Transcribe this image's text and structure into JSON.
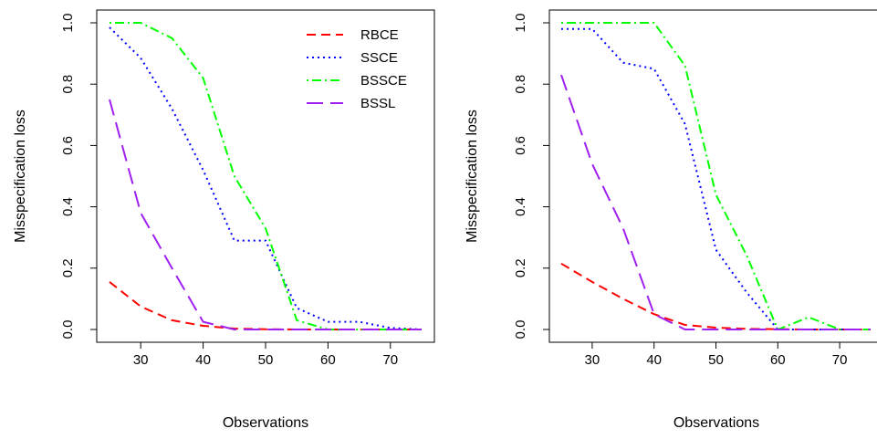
{
  "chart_data": [
    {
      "type": "line",
      "xlabel": "Observations",
      "ylabel": "Misspecification loss",
      "xlim": [
        25,
        75
      ],
      "ylim": [
        0,
        1
      ],
      "xticks": [
        "30",
        "40",
        "50",
        "60",
        "70"
      ],
      "yticks": [
        "0.0",
        "0.2",
        "0.4",
        "0.6",
        "0.8",
        "1.0"
      ],
      "legend": "top-right",
      "grid": false,
      "x": [
        25,
        30,
        35,
        40,
        45,
        50,
        55,
        60,
        65,
        70,
        75
      ],
      "series": [
        {
          "name": "RBCE",
          "color": "#ff0000",
          "dash": "dashed",
          "values": [
            0.155,
            0.075,
            0.03,
            0.012,
            0.003,
            0.001,
            0.0,
            0.0,
            0.0,
            0.0,
            0.0
          ]
        },
        {
          "name": "SSCE",
          "color": "#0000ff",
          "dash": "dotted",
          "values": [
            0.985,
            0.885,
            0.72,
            0.52,
            0.29,
            0.29,
            0.07,
            0.025,
            0.025,
            0.005,
            0.0
          ]
        },
        {
          "name": "BSSCE",
          "color": "#00ff00",
          "dash": "dotdash",
          "values": [
            1.0,
            1.0,
            0.95,
            0.82,
            0.5,
            0.33,
            0.03,
            0.0,
            0.0,
            0.0,
            0.0
          ]
        },
        {
          "name": "BSSL",
          "color": "#a020f0",
          "dash": "longdash",
          "values": [
            0.75,
            0.38,
            0.2,
            0.025,
            0.0,
            0.0,
            0.0,
            0.0,
            0.0,
            0.0,
            0.0
          ]
        }
      ]
    },
    {
      "type": "line",
      "xlabel": "Observations",
      "ylabel": "Misspecification loss",
      "xlim": [
        25,
        75
      ],
      "ylim": [
        0,
        1
      ],
      "xticks": [
        "30",
        "40",
        "50",
        "60",
        "70"
      ],
      "yticks": [
        "0.0",
        "0.2",
        "0.4",
        "0.6",
        "0.8",
        "1.0"
      ],
      "grid": false,
      "x": [
        25,
        30,
        35,
        40,
        45,
        50,
        55,
        60,
        65,
        70,
        75
      ],
      "series": [
        {
          "name": "RBCE",
          "color": "#ff0000",
          "dash": "dashed",
          "values": [
            0.215,
            0.155,
            0.1,
            0.05,
            0.015,
            0.006,
            0.002,
            0.001,
            0.0,
            0.0,
            0.0
          ]
        },
        {
          "name": "SSCE",
          "color": "#0000ff",
          "dash": "dotted",
          "values": [
            0.98,
            0.98,
            0.87,
            0.85,
            0.67,
            0.26,
            0.12,
            0.0,
            0.0,
            0.0,
            0.0
          ]
        },
        {
          "name": "BSSCE",
          "color": "#00ff00",
          "dash": "dotdash",
          "values": [
            1.0,
            1.0,
            1.0,
            1.0,
            0.86,
            0.44,
            0.24,
            0.0,
            0.04,
            0.0,
            0.0
          ]
        },
        {
          "name": "BSSL",
          "color": "#a020f0",
          "dash": "longdash",
          "values": [
            0.83,
            0.54,
            0.33,
            0.05,
            0.0,
            0.0,
            0.0,
            0.0,
            0.0,
            0.0,
            0.0
          ]
        }
      ]
    }
  ]
}
